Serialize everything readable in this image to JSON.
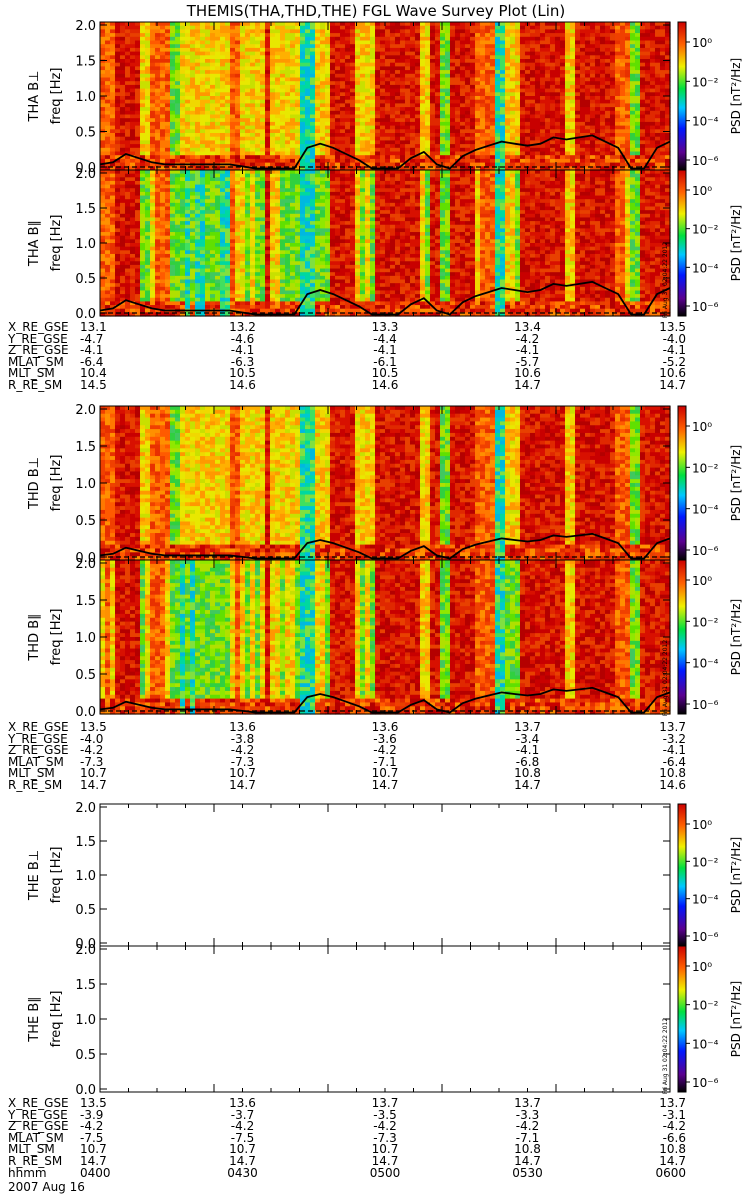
{
  "title": "THEMIS(THA,THD,THE) FGL Wave Survey Plot (Lin)",
  "colors": {
    "axis": "#000000",
    "background": "#ffffff"
  },
  "chart_data": {
    "type": "heatmap",
    "title": "THEMIS(THA,THD,THE) FGL Wave Survey Plot (Lin)",
    "x_ticks": [
      "0400",
      "0430",
      "0500",
      "0530",
      "0600"
    ],
    "y_ticks": [
      "0.0",
      "0.5",
      "1.0",
      "1.5",
      "2.0"
    ],
    "y_label": "freq [Hz]",
    "y_range": [
      0.0,
      2.0
    ],
    "colorbar_label": "PSD [nT²/Hz]",
    "colorbar_ticks": [
      "10⁰",
      "10⁻²",
      "10⁻⁴",
      "10⁻⁶"
    ],
    "stamp": "Fri Aug 31 02:04:22 2012",
    "panels": [
      {
        "probe": "THA",
        "label": "THA B⊥",
        "component": "perp",
        "has_data": true
      },
      {
        "probe": "THA",
        "label": "THA B∥",
        "component": "par",
        "has_data": true
      },
      {
        "probe": "THD",
        "label": "THD B⊥",
        "component": "perp",
        "has_data": true
      },
      {
        "probe": "THD",
        "label": "THD B∥",
        "component": "par",
        "has_data": true
      },
      {
        "probe": "THE",
        "label": "THE B⊥",
        "component": "perp",
        "has_data": false
      },
      {
        "probe": "THE",
        "label": "THE B∥",
        "component": "par",
        "has_data": false
      }
    ]
  },
  "ephemeris": {
    "THA": {
      "rows": [
        {
          "label": "X_RE_GSE",
          "values": [
            "13.1",
            "13.2",
            "13.3",
            "13.4",
            "13.5"
          ]
        },
        {
          "label": "Y_RE_GSE",
          "values": [
            "-4.7",
            "-4.6",
            "-4.4",
            "-4.2",
            "-4.0"
          ]
        },
        {
          "label": "Z_RE_GSE",
          "values": [
            "-4.1",
            "-4.1",
            "-4.1",
            "-4.1",
            "-4.1"
          ]
        },
        {
          "label": "MLAT_SM",
          "values": [
            "-6.4",
            "-6.3",
            "-6.1",
            "-5.7",
            "-5.2"
          ]
        },
        {
          "label": "MLT_SM",
          "values": [
            "10.4",
            "10.5",
            "10.5",
            "10.6",
            "10.6"
          ]
        },
        {
          "label": "R_RE_SM",
          "values": [
            "14.5",
            "14.6",
            "14.6",
            "14.7",
            "14.7"
          ]
        }
      ]
    },
    "THD": {
      "rows": [
        {
          "label": "X_RE_GSE",
          "values": [
            "13.5",
            "13.6",
            "13.6",
            "13.7",
            "13.7"
          ]
        },
        {
          "label": "Y_RE_GSE",
          "values": [
            "-4.0",
            "-3.8",
            "-3.6",
            "-3.4",
            "-3.2"
          ]
        },
        {
          "label": "Z_RE_GSE",
          "values": [
            "-4.2",
            "-4.2",
            "-4.2",
            "-4.1",
            "-4.1"
          ]
        },
        {
          "label": "MLAT_SM",
          "values": [
            "-7.3",
            "-7.3",
            "-7.1",
            "-6.8",
            "-6.4"
          ]
        },
        {
          "label": "MLT_SM",
          "values": [
            "10.7",
            "10.7",
            "10.7",
            "10.8",
            "10.8"
          ]
        },
        {
          "label": "R_RE_SM",
          "values": [
            "14.7",
            "14.7",
            "14.7",
            "14.7",
            "14.6"
          ]
        }
      ]
    },
    "THE": {
      "rows": [
        {
          "label": "X_RE_GSE",
          "values": [
            "13.5",
            "13.6",
            "13.7",
            "13.7",
            "13.7"
          ]
        },
        {
          "label": "Y_RE_GSE",
          "values": [
            "-3.9",
            "-3.7",
            "-3.5",
            "-3.3",
            "-3.1"
          ]
        },
        {
          "label": "Z_RE_GSE",
          "values": [
            "-4.2",
            "-4.2",
            "-4.2",
            "-4.2",
            "-4.2"
          ]
        },
        {
          "label": "MLAT_SM",
          "values": [
            "-7.5",
            "-7.5",
            "-7.3",
            "-7.1",
            "-6.6"
          ]
        },
        {
          "label": "MLT_SM",
          "values": [
            "10.7",
            "10.7",
            "10.7",
            "10.8",
            "10.8"
          ]
        },
        {
          "label": "R_RE_SM",
          "values": [
            "14.7",
            "14.7",
            "14.7",
            "14.7",
            "14.7"
          ]
        },
        {
          "label": "hhmm",
          "values": [
            "0400",
            "0430",
            "0500",
            "0530",
            "0600"
          ]
        }
      ]
    }
  },
  "date_label": "2007 Aug 16"
}
